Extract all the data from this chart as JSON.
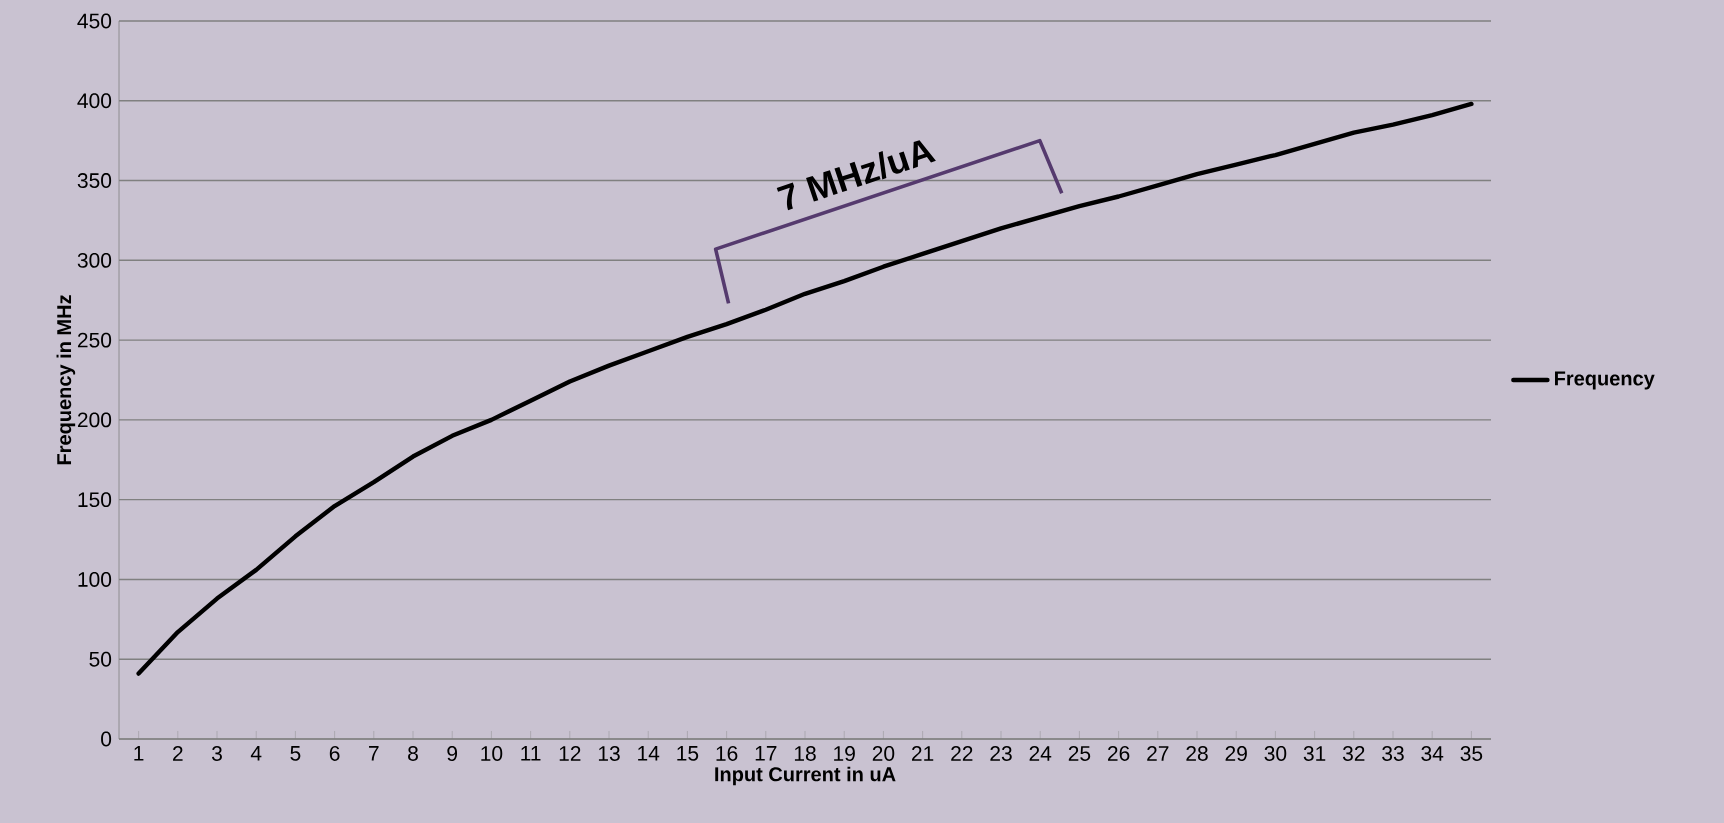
{
  "chart_data": {
    "type": "line",
    "xlabel": "Input Current in uA",
    "ylabel": "Frequency in MHz",
    "categories": [
      "1",
      "2",
      "3",
      "4",
      "5",
      "6",
      "7",
      "8",
      "9",
      "10",
      "11",
      "12",
      "13",
      "14",
      "15",
      "16",
      "17",
      "18",
      "19",
      "20",
      "21",
      "22",
      "23",
      "24",
      "25",
      "26",
      "27",
      "28",
      "29",
      "30",
      "31",
      "32",
      "33",
      "34",
      "35"
    ],
    "series": [
      {
        "name": "Frequency",
        "color": "#000000",
        "values": [
          41,
          67,
          88,
          106,
          127,
          146,
          161,
          177,
          190,
          200,
          212,
          224,
          234,
          243,
          252,
          260,
          269,
          279,
          287,
          296,
          304,
          312,
          320,
          327,
          334,
          340,
          347,
          354,
          360,
          366,
          373,
          380,
          385,
          391,
          398
        ]
      }
    ],
    "ylim": [
      0,
      450
    ],
    "yticks": [
      0,
      50,
      100,
      150,
      200,
      250,
      300,
      350,
      400,
      450
    ],
    "grid": "y",
    "legend": "right",
    "marker": "none",
    "line_style": "solid",
    "annotations": [
      "7 MHz/uA"
    ]
  }
}
